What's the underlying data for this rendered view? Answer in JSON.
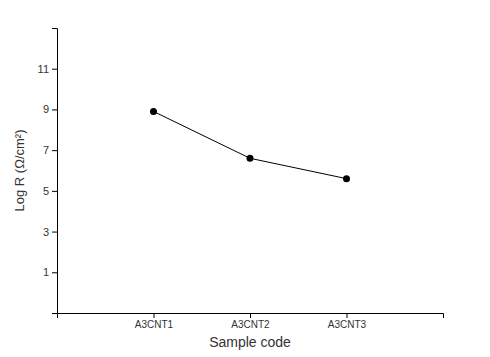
{
  "chart_data": {
    "type": "line",
    "x_label": "Sample code",
    "y_label": "Log R (Ω/cm²)",
    "categories": [
      "A3CNT1",
      "A3CNT2",
      "A3CNT3"
    ],
    "values": [
      8.9,
      6.6,
      5.6
    ],
    "color": "#000000",
    "marker": "circle",
    "ylim": [
      -1,
      13
    ],
    "yticks": [
      1,
      3,
      5,
      7,
      9,
      11
    ]
  }
}
